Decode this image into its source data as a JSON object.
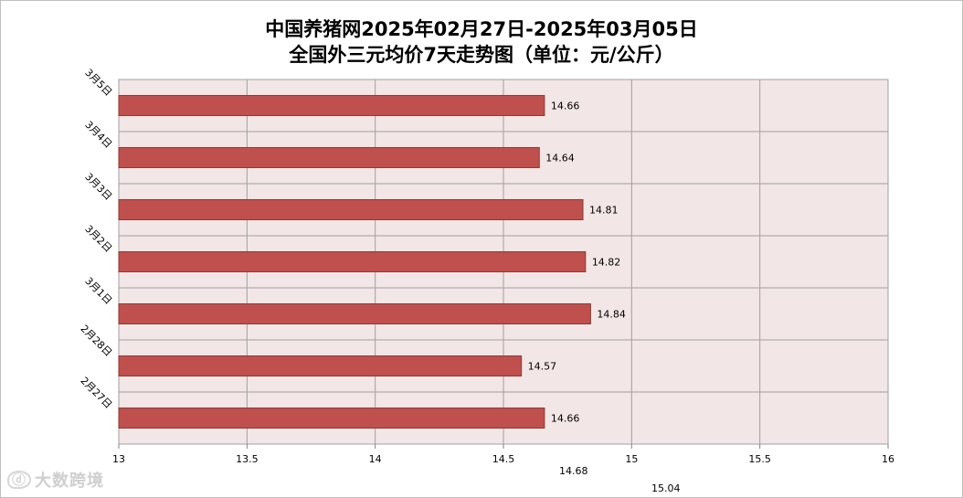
{
  "chart_data": {
    "type": "bar",
    "orientation": "horizontal",
    "title": "中国养猪网2025年02月27日-2025年03月05日",
    "subtitle": "全国外三元均价7天走势图（单位：元/公斤）",
    "categories": [
      "3月5日",
      "3月4日",
      "3月3日",
      "3月2日",
      "3月1日",
      "2月28日",
      "2月27日"
    ],
    "values": [
      14.66,
      14.64,
      14.81,
      14.82,
      14.84,
      14.57,
      14.66
    ],
    "data_labels": [
      "14.66",
      "14.64",
      "14.81",
      "14.82",
      "14.84",
      "14.57",
      "14.66"
    ],
    "xlim": [
      13,
      16
    ],
    "x_ticks": [
      "13",
      "13.5",
      "14",
      "14.5",
      "15",
      "15.5",
      "16"
    ],
    "extra_labels": [
      "14.68",
      "15.04"
    ],
    "grid": true,
    "bar_color": "#c0504d",
    "plot_background": "#f2e6e6"
  },
  "watermark": {
    "logo": "ⓓ",
    "text": "大数跨境"
  }
}
